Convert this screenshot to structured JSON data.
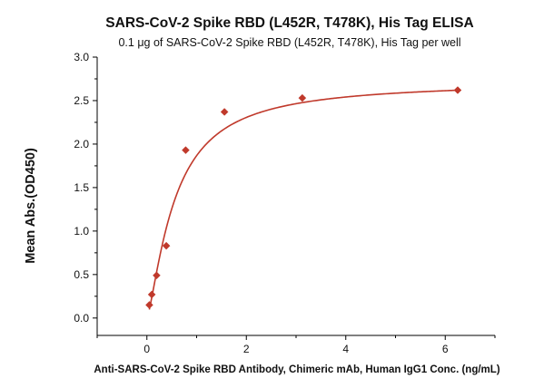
{
  "chart_data": {
    "type": "scatter",
    "title": "SARS-CoV-2 Spike RBD (L452R, T478K), His Tag ELISA",
    "subtitle": "0.1 μg of SARS-CoV-2 Spike RBD (L452R, T478K), His Tag per well",
    "xlabel": "Anti-SARS-CoV-2 Spike RBD Antibody, Chimeric mAb, Human IgG1 Conc. (ng/mL)",
    "ylabel": "Mean Abs.(OD450)",
    "xlim": [
      -1,
      7
    ],
    "ylim": [
      -0.2,
      3.0
    ],
    "x_ticks": [
      0,
      2,
      4,
      6
    ],
    "y_ticks": [
      0.0,
      0.5,
      1.0,
      1.5,
      2.0,
      2.5,
      3.0
    ],
    "y_tick_labels": [
      "0.0",
      "0.5",
      "1.0",
      "1.5",
      "2.0",
      "2.5",
      "3.0"
    ],
    "grid": false,
    "colors": {
      "series": "#c0392b",
      "axis": "#000000"
    },
    "series": [
      {
        "x": [
          0.049,
          0.098,
          0.195,
          0.39,
          0.78,
          1.56,
          3.125,
          6.25
        ],
        "values": [
          0.15,
          0.27,
          0.49,
          0.83,
          1.93,
          2.37,
          2.53,
          2.62
        ],
        "marker": "diamond",
        "fit": "four-parameter logistic"
      }
    ]
  }
}
